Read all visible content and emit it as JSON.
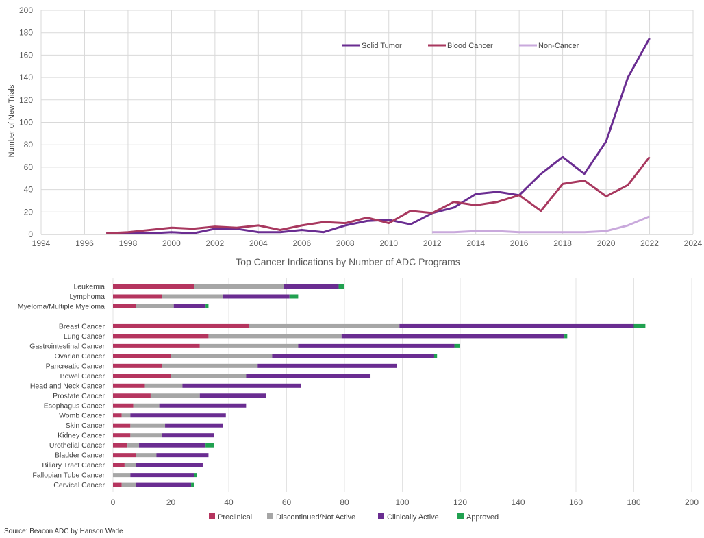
{
  "source": "Source: Beacon ADC by Hanson Wade",
  "chart_data": [
    {
      "type": "line",
      "title": "",
      "xlabel": "",
      "ylabel": "Number of New Trials",
      "xlim": [
        1994,
        2024
      ],
      "ylim": [
        0,
        200
      ],
      "xticks": [
        1994,
        1996,
        1998,
        2000,
        2002,
        2004,
        2006,
        2008,
        2010,
        2012,
        2014,
        2016,
        2018,
        2020,
        2022,
        2024
      ],
      "yticks": [
        0,
        20,
        40,
        60,
        80,
        100,
        120,
        140,
        160,
        180,
        200
      ],
      "grid": true,
      "legend": "top-right",
      "series": [
        {
          "name": "Solid Tumor",
          "color": "#6a2d91",
          "points": [
            [
              1997,
              1
            ],
            [
              1998,
              1
            ],
            [
              1999,
              1
            ],
            [
              2000,
              2
            ],
            [
              2001,
              1
            ],
            [
              2002,
              5
            ],
            [
              2003,
              5
            ],
            [
              2004,
              2
            ],
            [
              2005,
              2
            ],
            [
              2006,
              4
            ],
            [
              2007,
              2
            ],
            [
              2008,
              8
            ],
            [
              2009,
              12
            ],
            [
              2010,
              13
            ],
            [
              2011,
              9
            ],
            [
              2012,
              19
            ],
            [
              2013,
              24
            ],
            [
              2014,
              36
            ],
            [
              2015,
              38
            ],
            [
              2016,
              35
            ],
            [
              2017,
              54
            ],
            [
              2018,
              69
            ],
            [
              2019,
              54
            ],
            [
              2020,
              83
            ],
            [
              2021,
              140
            ],
            [
              2022,
              175
            ]
          ]
        },
        {
          "name": "Blood Cancer",
          "color": "#a8385f",
          "points": [
            [
              1997,
              1
            ],
            [
              1998,
              2
            ],
            [
              1999,
              4
            ],
            [
              2000,
              6
            ],
            [
              2001,
              5
            ],
            [
              2002,
              7
            ],
            [
              2003,
              6
            ],
            [
              2004,
              8
            ],
            [
              2005,
              4
            ],
            [
              2006,
              8
            ],
            [
              2007,
              11
            ],
            [
              2008,
              10
            ],
            [
              2009,
              15
            ],
            [
              2010,
              10
            ],
            [
              2011,
              21
            ],
            [
              2012,
              19
            ],
            [
              2013,
              29
            ],
            [
              2014,
              26
            ],
            [
              2015,
              29
            ],
            [
              2016,
              35
            ],
            [
              2017,
              21
            ],
            [
              2018,
              45
            ],
            [
              2019,
              48
            ],
            [
              2020,
              34
            ],
            [
              2021,
              44
            ],
            [
              2022,
              69
            ]
          ]
        },
        {
          "name": "Non-Cancer",
          "color": "#c9a9dc",
          "points": [
            [
              2012,
              2
            ],
            [
              2013,
              2
            ],
            [
              2014,
              3
            ],
            [
              2015,
              3
            ],
            [
              2016,
              2
            ],
            [
              2017,
              2
            ],
            [
              2018,
              2
            ],
            [
              2019,
              2
            ],
            [
              2020,
              3
            ],
            [
              2021,
              8
            ],
            [
              2022,
              16
            ]
          ]
        }
      ]
    },
    {
      "type": "bar",
      "orientation": "horizontal",
      "stacked": true,
      "title": "Top Cancer Indications by Number of ADC Programs",
      "xlim": [
        0,
        200
      ],
      "xticks": [
        0,
        20,
        40,
        60,
        80,
        100,
        120,
        140,
        160,
        180,
        200
      ],
      "grid": true,
      "legend": "bottom",
      "categories": [
        "Leukemia",
        "Lymphoma",
        "Myeloma/Multiple Myeloma",
        "",
        "Breast Cancer",
        "Lung Cancer",
        "Gastrointestinal Cancer",
        "Ovarian Cancer",
        "Pancreatic Cancer",
        "Bowel Cancer",
        "Head and Neck Cancer",
        "Prostate Cancer",
        "Esophagus Cancer",
        "Womb Cancer",
        "Skin Cancer",
        "Kidney Cancer",
        "Urothelial Cancer",
        "Bladder Cancer",
        "Biliary Tract Cancer",
        "Fallopian Tube Cancer",
        "Cervical Cancer"
      ],
      "series": [
        {
          "name": "Preclinical",
          "color": "#b5355f",
          "values": [
            28,
            17,
            8,
            0,
            47,
            33,
            30,
            20,
            17,
            20,
            11,
            13,
            7,
            3,
            6,
            6,
            5,
            8,
            4,
            0,
            3
          ]
        },
        {
          "name": "Discontinued/Not Active",
          "color": "#a6a6a6",
          "values": [
            31,
            21,
            13,
            0,
            52,
            46,
            34,
            35,
            33,
            26,
            13,
            17,
            9,
            3,
            12,
            11,
            4,
            7,
            4,
            6,
            5
          ]
        },
        {
          "name": "Clinically Active",
          "color": "#6a2d91",
          "values": [
            19,
            23,
            11,
            0,
            81,
            77,
            54,
            56,
            48,
            43,
            41,
            23,
            30,
            33,
            20,
            18,
            23,
            18,
            23,
            22,
            19
          ]
        },
        {
          "name": "Approved",
          "color": "#21a150",
          "values": [
            2,
            3,
            1,
            0,
            4,
            1,
            2,
            1,
            0,
            0,
            0,
            0,
            0,
            0,
            0,
            0,
            3,
            0,
            0,
            1,
            1
          ]
        }
      ]
    }
  ]
}
